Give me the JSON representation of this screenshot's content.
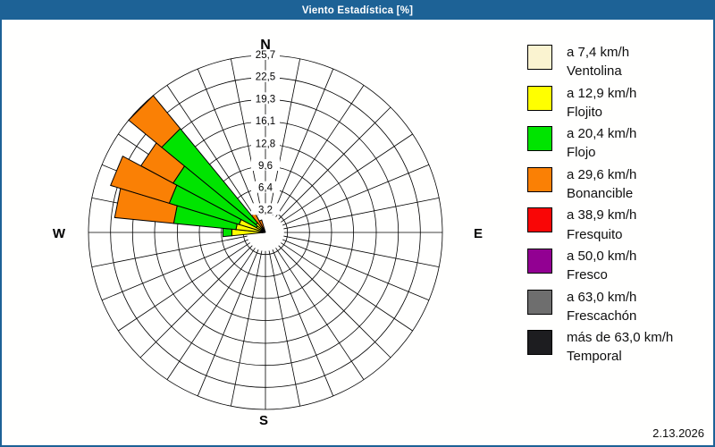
{
  "window": {
    "title": "Viento Estadística [%]"
  },
  "footer": {
    "date": "2.13.2026"
  },
  "colors": {
    "accent_blue": "#1D6296",
    "background": "#FFFFFF",
    "grid_line": "#000000",
    "text": "#0F0F0F"
  },
  "legend": {
    "entries": [
      {
        "class": "ventolina",
        "speed": "a 7,4 km/h",
        "name": "Ventolina",
        "color": "#FAF3D0"
      },
      {
        "class": "flojito",
        "speed": "a 12,9 km/h",
        "name": "Flojito",
        "color": "#FFFF00"
      },
      {
        "class": "flojo",
        "speed": "a 20,4 km/h",
        "name": "Flojo",
        "color": "#00E400"
      },
      {
        "class": "bonancible",
        "speed": "a 29,6 km/h",
        "name": "Bonancible",
        "color": "#FA8005"
      },
      {
        "class": "fresquito",
        "speed": "a 38,9 km/h",
        "name": "Fresquito",
        "color": "#F90606"
      },
      {
        "class": "fresco",
        "speed": "a 50,0 km/h",
        "name": "Fresco",
        "color": "#920092"
      },
      {
        "class": "frescachon",
        "speed": "a 63,0 km/h",
        "name": "Frescachón",
        "color": "#6E6E6E"
      },
      {
        "class": "temporal",
        "speed": "más de 63,0 km/h",
        "name": "Temporal",
        "color": "#1D1D20"
      }
    ]
  },
  "chart_data": {
    "type": "bar",
    "variant": "wind-rose-polar",
    "units": "%",
    "title": "Viento Estadística [%]",
    "radial_axis": {
      "tick_values": [
        3.2,
        6.4,
        9.6,
        12.8,
        16.1,
        19.3,
        22.5,
        25.7
      ],
      "tick_labels": [
        "3,2",
        "6,4",
        "9,6",
        "12,8",
        "16,1",
        "19,3",
        "22,5",
        "25,7"
      ],
      "max": 25.7,
      "grid_sectors": 32,
      "inner_hole_radius_ratio": 0.105
    },
    "compass": {
      "north": "N",
      "east": "E",
      "south": "S",
      "west": "W"
    },
    "petal_width_deg": 11.25,
    "petals": [
      {
        "compass": "W",
        "angle_deg": 270.0,
        "stack": [
          [
            "ventolina",
            0.4
          ],
          [
            "flojito",
            4.9
          ],
          [
            "flojo",
            6.2
          ]
        ]
      },
      {
        "compass": "WbN",
        "angle_deg": 281.25,
        "stack": [
          [
            "ventolina",
            0.4
          ],
          [
            "flojito",
            4.3
          ],
          [
            "flojo",
            13.4
          ],
          [
            "bonancible",
            22.0
          ]
        ]
      },
      {
        "compass": "WNW",
        "angle_deg": 292.5,
        "stack": [
          [
            "ventolina",
            0.4
          ],
          [
            "flojito",
            4.0
          ],
          [
            "flojo",
            14.6
          ],
          [
            "bonancible",
            23.5
          ]
        ]
      },
      {
        "compass": "NWbW",
        "angle_deg": 303.75,
        "stack": [
          [
            "ventolina",
            0.3
          ],
          [
            "flojito",
            1.5
          ],
          [
            "flojo",
            15.2
          ],
          [
            "bonancible",
            20.5
          ]
        ]
      },
      {
        "compass": "NW",
        "angle_deg": 315.0,
        "stack": [
          [
            "ventolina",
            0.3
          ],
          [
            "flojito",
            1.8
          ],
          [
            "flojo",
            19.5
          ],
          [
            "bonancible",
            25.7
          ]
        ]
      },
      {
        "compass": "NWbN",
        "angle_deg": 326.25,
        "stack": [
          [
            "flojito",
            0.8
          ],
          [
            "bonancible",
            3.2
          ]
        ]
      },
      {
        "compass": "NNW",
        "angle_deg": 337.5,
        "stack": [
          [
            "flojito",
            0.5
          ],
          [
            "bonancible",
            1.9
          ]
        ]
      }
    ]
  }
}
